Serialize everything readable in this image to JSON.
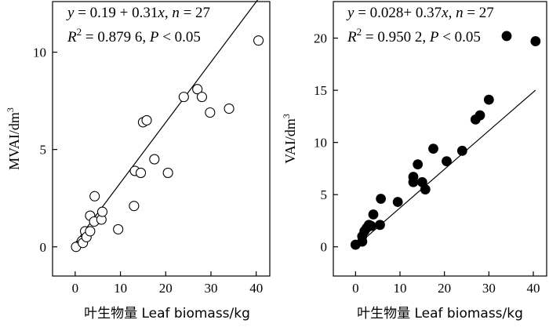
{
  "chart_data": [
    {
      "type": "scatter",
      "title": "",
      "xlabel": "叶生物量  Leaf biomass/kg",
      "ylabel": "MVAI/dm³",
      "ylabel_base": "MVAI/dm",
      "ylabel_sup": "3",
      "xlim": [
        -5,
        43
      ],
      "ylim": [
        -1.5,
        12.6
      ],
      "xticks": [
        0,
        10,
        20,
        30,
        40
      ],
      "yticks": [
        0,
        5,
        10
      ],
      "marker": "open",
      "fit": {
        "intercept": 0.19,
        "slope": 0.31,
        "x_range": [
          0,
          40.5
        ]
      },
      "eq": {
        "y": "y",
        "eq1": " = 0.19 + 0.31",
        "x": "x",
        "sep": ", ",
        "n": "n",
        "eq2": " = 27"
      },
      "stats": {
        "r": "R",
        "sup": "2",
        "eq1": " = 0.879 6,  ",
        "p": "P",
        "eq2": " < 0.05"
      },
      "points": [
        {
          "x": 0.2,
          "y": 0.0
        },
        {
          "x": 1.5,
          "y": 0.3
        },
        {
          "x": 1.7,
          "y": 0.2
        },
        {
          "x": 2.2,
          "y": 0.8
        },
        {
          "x": 2.5,
          "y": 0.5
        },
        {
          "x": 3.3,
          "y": 0.8
        },
        {
          "x": 3.3,
          "y": 1.6
        },
        {
          "x": 4.2,
          "y": 1.3
        },
        {
          "x": 4.3,
          "y": 2.6
        },
        {
          "x": 5.8,
          "y": 1.4
        },
        {
          "x": 6.0,
          "y": 1.8
        },
        {
          "x": 9.5,
          "y": 0.9
        },
        {
          "x": 13.0,
          "y": 2.1
        },
        {
          "x": 13.2,
          "y": 3.9
        },
        {
          "x": 14.5,
          "y": 3.8
        },
        {
          "x": 15.0,
          "y": 6.4
        },
        {
          "x": 15.8,
          "y": 6.5
        },
        {
          "x": 17.5,
          "y": 4.5
        },
        {
          "x": 20.5,
          "y": 3.8
        },
        {
          "x": 24.0,
          "y": 7.7
        },
        {
          "x": 27.0,
          "y": 8.1
        },
        {
          "x": 28.0,
          "y": 7.7
        },
        {
          "x": 29.8,
          "y": 6.9
        },
        {
          "x": 34.0,
          "y": 7.1
        },
        {
          "x": 40.5,
          "y": 10.6
        }
      ]
    },
    {
      "type": "scatter",
      "title": "",
      "xlabel": "叶生物量  Leaf biomass/kg",
      "ylabel": "VAI/dm³",
      "ylabel_base": "VAI/dm",
      "ylabel_sup": "3",
      "xlim": [
        -5,
        43
      ],
      "ylim": [
        -2.8,
        23.5
      ],
      "xticks": [
        0,
        10,
        20,
        30,
        40
      ],
      "yticks": [
        0,
        5,
        10,
        15,
        20
      ],
      "marker": "filled",
      "fit": {
        "intercept": 0.028,
        "slope": 0.37,
        "x_range": [
          0,
          40.5
        ]
      },
      "eq": {
        "y": "y",
        "eq1": " = 0.028+ 0.37",
        "x": "x",
        "sep": ", ",
        "n": "n",
        "eq2": " = 27"
      },
      "stats": {
        "r": "R",
        "sup": "2",
        "eq1": " = 0.950 2,  ",
        "p": "P",
        "eq2": " < 0.05"
      },
      "points": [
        {
          "x": 0.0,
          "y": 0.2
        },
        {
          "x": 1.5,
          "y": 0.5
        },
        {
          "x": 1.5,
          "y": 1.0
        },
        {
          "x": 2.0,
          "y": 1.5
        },
        {
          "x": 2.5,
          "y": 1.8
        },
        {
          "x": 3.0,
          "y": 2.1
        },
        {
          "x": 3.5,
          "y": 2.0
        },
        {
          "x": 4.0,
          "y": 3.1
        },
        {
          "x": 5.5,
          "y": 2.1
        },
        {
          "x": 5.7,
          "y": 4.6
        },
        {
          "x": 9.5,
          "y": 4.3
        },
        {
          "x": 13.0,
          "y": 6.2
        },
        {
          "x": 13.0,
          "y": 6.7
        },
        {
          "x": 14.0,
          "y": 7.9
        },
        {
          "x": 15.0,
          "y": 6.2
        },
        {
          "x": 15.7,
          "y": 5.5
        },
        {
          "x": 17.5,
          "y": 9.4
        },
        {
          "x": 20.5,
          "y": 8.2
        },
        {
          "x": 24.0,
          "y": 9.2
        },
        {
          "x": 27.0,
          "y": 12.2
        },
        {
          "x": 28.0,
          "y": 12.6
        },
        {
          "x": 30.0,
          "y": 14.1
        },
        {
          "x": 34.0,
          "y": 20.2
        },
        {
          "x": 40.5,
          "y": 19.7
        }
      ]
    }
  ]
}
